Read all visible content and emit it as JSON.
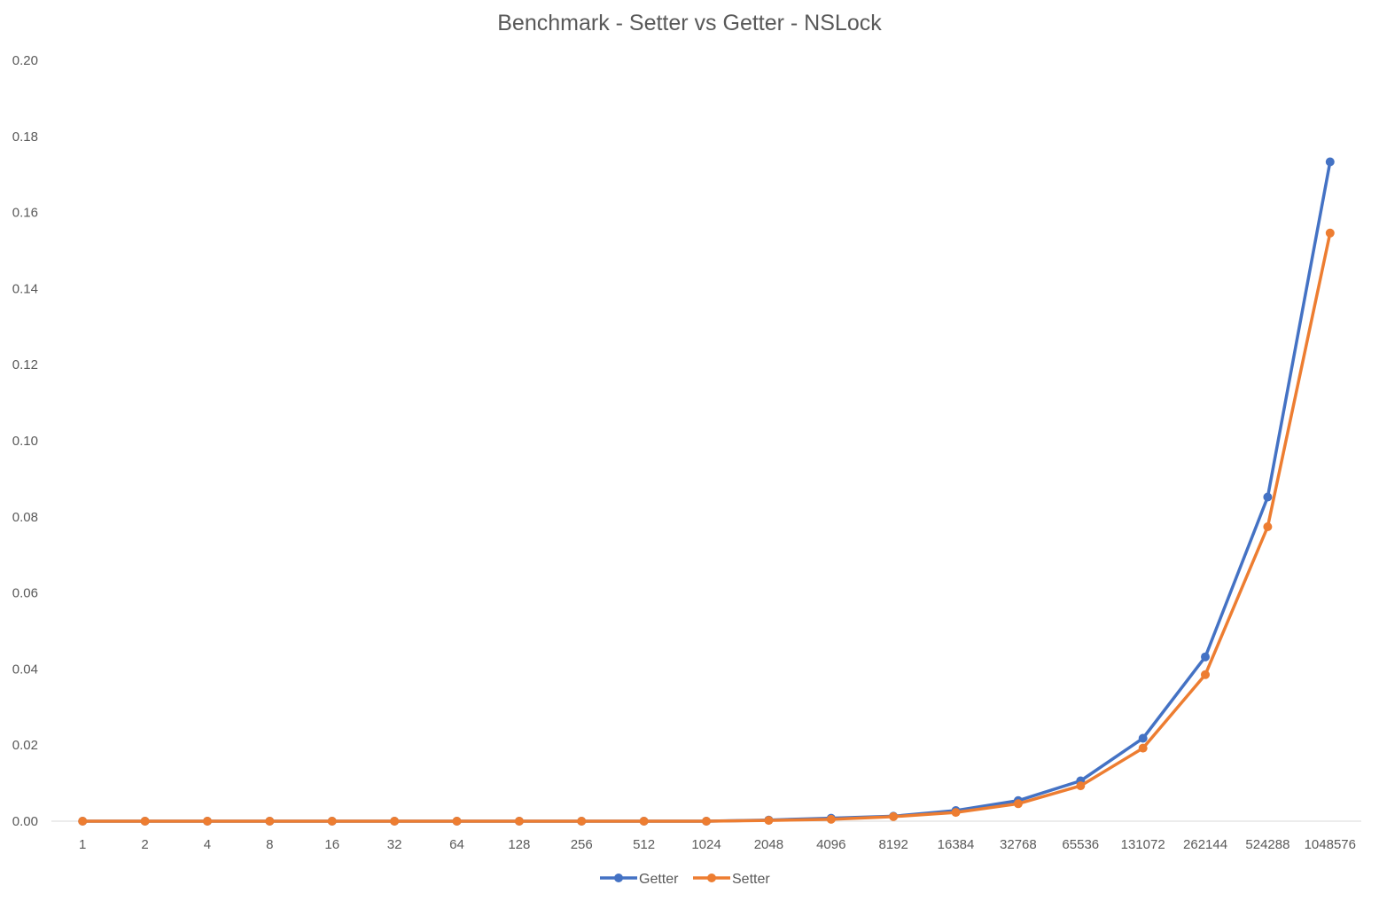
{
  "chart_data": {
    "type": "line",
    "title": "Benchmark - Setter vs Getter - NSLock",
    "xlabel": "",
    "ylabel": "",
    "categories": [
      "1",
      "2",
      "4",
      "8",
      "16",
      "32",
      "64",
      "128",
      "256",
      "512",
      "1024",
      "2048",
      "4096",
      "8192",
      "16384",
      "32768",
      "65536",
      "131072",
      "262144",
      "524288",
      "1048576"
    ],
    "ylim": [
      0,
      0.2
    ],
    "yticks": [
      "0.00",
      "0.02",
      "0.04",
      "0.06",
      "0.08",
      "0.10",
      "0.12",
      "0.14",
      "0.16",
      "0.18",
      "0.20"
    ],
    "grid": false,
    "legend": "bottom",
    "series": [
      {
        "name": "Getter",
        "color": "#4472C4",
        "values": [
          0.0,
          0.0,
          0.0,
          0.0,
          0.0,
          0.0,
          0.0,
          0.0,
          0.0,
          0.0,
          0.0,
          0.0003,
          0.0008,
          0.0013,
          0.0028,
          0.0054,
          0.0106,
          0.0218,
          0.0432,
          0.0852,
          0.1733
        ]
      },
      {
        "name": "Setter",
        "color": "#ED7D31",
        "values": [
          0.0,
          0.0,
          0.0,
          0.0,
          0.0,
          0.0,
          0.0,
          0.0,
          0.0,
          0.0,
          0.0,
          0.0002,
          0.0005,
          0.0012,
          0.0023,
          0.0046,
          0.0093,
          0.0192,
          0.0385,
          0.0774,
          0.1546
        ]
      }
    ]
  }
}
